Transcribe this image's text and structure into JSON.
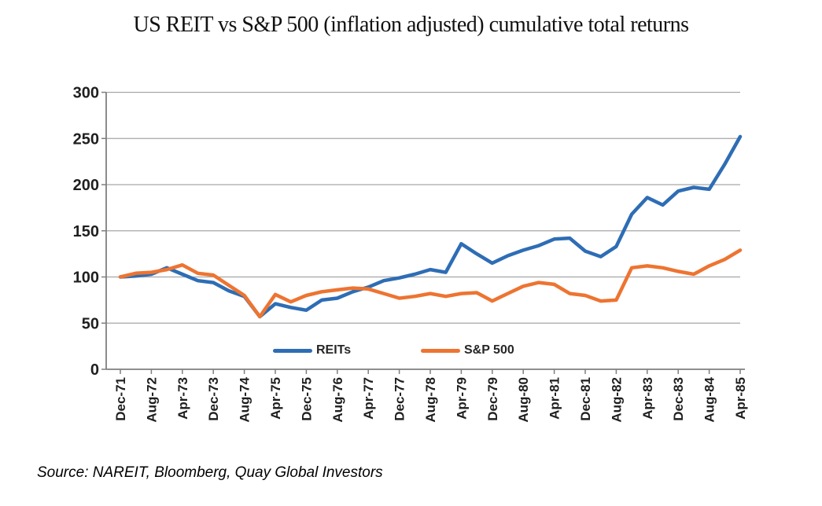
{
  "title": "US REIT vs S&P 500 (inflation adjusted) cumulative total returns",
  "source_note": "Source: NAREIT, Bloomberg, Quay Global Investors",
  "legend": {
    "items": [
      {
        "label": "REITs",
        "color": "#2E6DB5"
      },
      {
        "label": "S&P 500",
        "color": "#ED7431"
      }
    ]
  },
  "colors": {
    "gridline": "#A6A6A6",
    "axis": "#7F7F7F",
    "tick_text": "#1F1F1F",
    "background": "#FFFFFF"
  },
  "chart_data": {
    "type": "line",
    "title": "US REIT vs S&P 500 (inflation adjusted) cumulative total returns",
    "xlabel": "",
    "ylabel": "",
    "ylim": [
      0,
      300
    ],
    "y_ticks": [
      0,
      50,
      100,
      150,
      200,
      250,
      300
    ],
    "grid": true,
    "legend_position": "bottom-inside",
    "x_tick_labels": [
      "Dec-71",
      "Aug-72",
      "Apr-73",
      "Dec-73",
      "Aug-74",
      "Apr-75",
      "Dec-75",
      "Aug-76",
      "Apr-77",
      "Dec-77",
      "Aug-78",
      "Apr-79",
      "Dec-79",
      "Aug-80",
      "Apr-81",
      "Dec-81",
      "Aug-82",
      "Apr-83",
      "Dec-83",
      "Aug-84",
      "Apr-85"
    ],
    "points_per_tick": 2,
    "n_points": 41,
    "x_frequency_months": 4,
    "series": [
      {
        "name": "REITs",
        "color": "#2E6DB5",
        "values": [
          100,
          101,
          103,
          110,
          103,
          96,
          94,
          85,
          79,
          57,
          71,
          67,
          64,
          75,
          77,
          84,
          89,
          96,
          99,
          103,
          108,
          105,
          136,
          125,
          115,
          123,
          129,
          134,
          141,
          142,
          128,
          122,
          133,
          168,
          186,
          178,
          193,
          197,
          195,
          222,
          252
        ]
      },
      {
        "name": "S&P 500",
        "color": "#ED7431",
        "values": [
          100,
          104,
          105,
          108,
          113,
          104,
          102,
          91,
          80,
          57,
          81,
          73,
          80,
          84,
          86,
          88,
          87,
          82,
          77,
          79,
          82,
          79,
          82,
          83,
          74,
          82,
          90,
          94,
          92,
          82,
          80,
          74,
          75,
          110,
          112,
          110,
          106,
          103,
          112,
          119,
          129
        ]
      }
    ]
  }
}
